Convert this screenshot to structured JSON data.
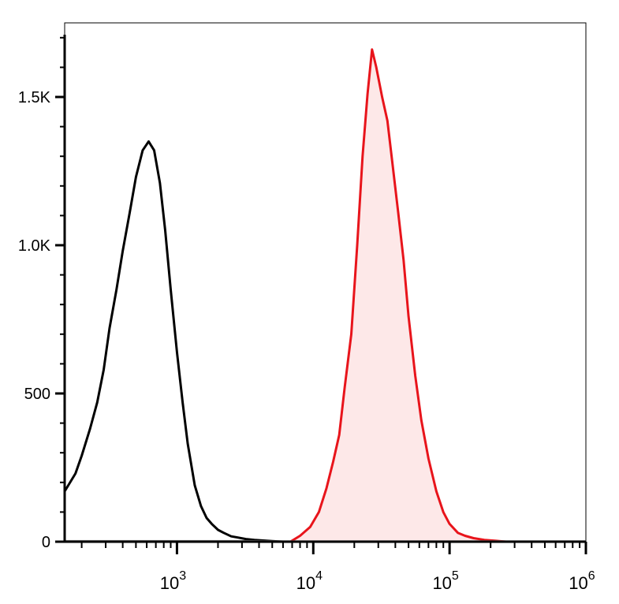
{
  "chart_data": {
    "type": "line",
    "title": "",
    "xlabel": "",
    "ylabel": "",
    "x_scale": "log",
    "xlim": [
      150,
      1000000
    ],
    "ylim": [
      0,
      1750
    ],
    "grid": false,
    "legend": "none",
    "y_ticks": [
      {
        "value": 0,
        "label": "0"
      },
      {
        "value": 500,
        "label": "500"
      },
      {
        "value": 1000,
        "label": "1.0K"
      },
      {
        "value": 1500,
        "label": "1.5K"
      }
    ],
    "x_ticks": [
      {
        "value": 1000,
        "base": "10",
        "exp": "3"
      },
      {
        "value": 10000,
        "base": "10",
        "exp": "4"
      },
      {
        "value": 100000,
        "base": "10",
        "exp": "5"
      },
      {
        "value": 1000000,
        "base": "10",
        "exp": "6"
      }
    ],
    "series": [
      {
        "color": "#000000",
        "fill": "none",
        "x": [
          150,
          180,
          200,
          230,
          260,
          290,
          320,
          360,
          400,
          450,
          500,
          560,
          620,
          680,
          750,
          820,
          900,
          1000,
          1100,
          1200,
          1350,
          1500,
          1650,
          1800,
          2000,
          2200,
          2500,
          2800,
          3200,
          3700,
          4300,
          5000,
          6000
        ],
        "y": [
          170,
          230,
          290,
          380,
          470,
          580,
          720,
          850,
          980,
          1110,
          1230,
          1320,
          1350,
          1320,
          1210,
          1050,
          850,
          640,
          470,
          330,
          190,
          120,
          80,
          60,
          40,
          30,
          18,
          14,
          9,
          6,
          4,
          2,
          0
        ]
      },
      {
        "color": "#e8141b",
        "fill": "#fde8e8",
        "x": [
          6800,
          8000,
          9500,
          11000,
          12500,
          14000,
          15500,
          17000,
          19000,
          21000,
          23000,
          25000,
          27000,
          29000,
          32000,
          35000,
          38000,
          42000,
          46000,
          50000,
          56000,
          62000,
          70000,
          80000,
          90000,
          100000,
          115000,
          130000,
          150000,
          180000,
          220000,
          260000
        ],
        "y": [
          0,
          20,
          50,
          100,
          180,
          270,
          360,
          520,
          700,
          1000,
          1300,
          1510,
          1660,
          1600,
          1500,
          1420,
          1280,
          1110,
          950,
          760,
          560,
          410,
          280,
          170,
          100,
          60,
          30,
          20,
          12,
          6,
          3,
          0
        ]
      },
      {
        "color": "#999999",
        "fill": "none",
        "x": [
          150,
          300,
          600,
          1200,
          2500,
          5000,
          10000,
          20000,
          50000,
          100000,
          200000,
          500000,
          1000000
        ],
        "y": [
          3,
          3,
          3,
          3,
          3,
          2,
          2,
          2,
          2,
          2,
          2,
          2,
          2
        ]
      }
    ]
  }
}
